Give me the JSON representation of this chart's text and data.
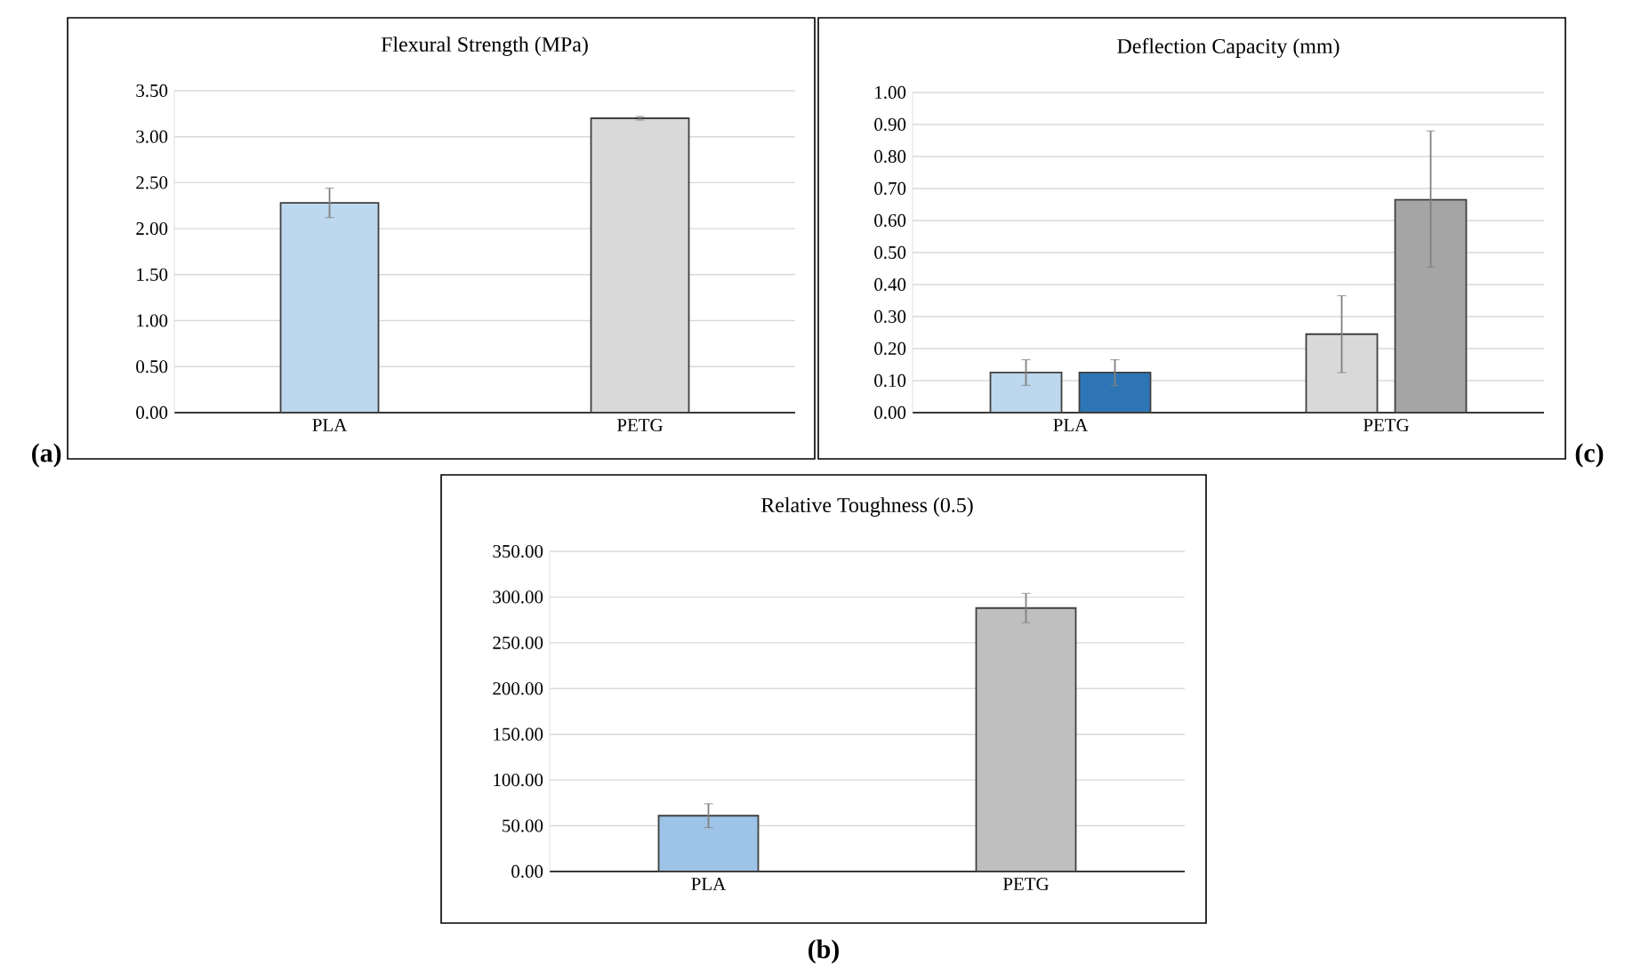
{
  "chart_data": [
    {
      "type": "bar",
      "title": "Flexural Strength (MPa)",
      "categories": [
        "PLA",
        "PETG"
      ],
      "series": [
        {
          "values": [
            2.28,
            3.2
          ],
          "colors": [
            "#bdd7ee",
            "#d9d9d9"
          ],
          "errors": [
            0.16,
            0.02
          ]
        }
      ],
      "ylim": [
        0,
        3.5
      ],
      "yticks": [
        {
          "value": 0,
          "label": "0.00"
        },
        {
          "value": 0.5,
          "label": "0.50"
        },
        {
          "value": 1,
          "label": "1.00"
        },
        {
          "value": 1.5,
          "label": "1.50"
        },
        {
          "value": 2,
          "label": "2.00"
        },
        {
          "value": 2.5,
          "label": "2.50"
        },
        {
          "value": 3,
          "label": "3.00"
        },
        {
          "value": 3.5,
          "label": "3.50"
        }
      ],
      "grid": "y",
      "annotations": [
        "(a)"
      ]
    },
    {
      "type": "bar",
      "title": "Deflection Capacity (mm)",
      "categories": [
        "PLA",
        "PETG"
      ],
      "series": [
        {
          "values": [
            0.125,
            0.245
          ],
          "colors": [
            "#bdd7ee",
            "#d9d9d9"
          ],
          "errors": [
            0.04,
            0.12
          ]
        },
        {
          "values": [
            0.125,
            0.665
          ],
          "colors": [
            "#2e75b6",
            "#a5a5a5"
          ],
          "errors": [
            0.04,
            [
              0.455,
              0.88
            ]
          ]
        }
      ],
      "ylim": [
        0,
        1
      ],
      "yticks": [
        {
          "value": 0,
          "label": "0.00"
        },
        {
          "value": 0.1,
          "label": "0.10"
        },
        {
          "value": 0.2,
          "label": "0.20"
        },
        {
          "value": 0.3,
          "label": "0.30"
        },
        {
          "value": 0.4,
          "label": "0.40"
        },
        {
          "value": 0.5,
          "label": "0.50"
        },
        {
          "value": 0.6,
          "label": "0.60"
        },
        {
          "value": 0.7,
          "label": "0.70"
        },
        {
          "value": 0.8,
          "label": "0.80"
        },
        {
          "value": 0.9,
          "label": "0.90"
        },
        {
          "value": 1,
          "label": "1.00"
        }
      ],
      "grid": "y",
      "annotations": [
        "(c)"
      ]
    },
    {
      "type": "bar",
      "title": "Relative Toughness (0.5)",
      "categories": [
        "PLA",
        "PETG"
      ],
      "series": [
        {
          "values": [
            61,
            288
          ],
          "colors": [
            "#9dc3e6",
            "#bfbfbf"
          ],
          "errors": [
            13,
            16
          ]
        }
      ],
      "ylim": [
        0,
        350
      ],
      "yticks": [
        {
          "value": 0,
          "label": "0.00"
        },
        {
          "value": 50,
          "label": "50.00"
        },
        {
          "value": 100,
          "label": "100.00"
        },
        {
          "value": 150,
          "label": "150.00"
        },
        {
          "value": 200,
          "label": "200.00"
        },
        {
          "value": 250,
          "label": "250.00"
        },
        {
          "value": 300,
          "label": "300.00"
        },
        {
          "value": 350,
          "label": "350.00"
        }
      ],
      "grid": "y",
      "annotations": [
        "(b)"
      ]
    }
  ]
}
